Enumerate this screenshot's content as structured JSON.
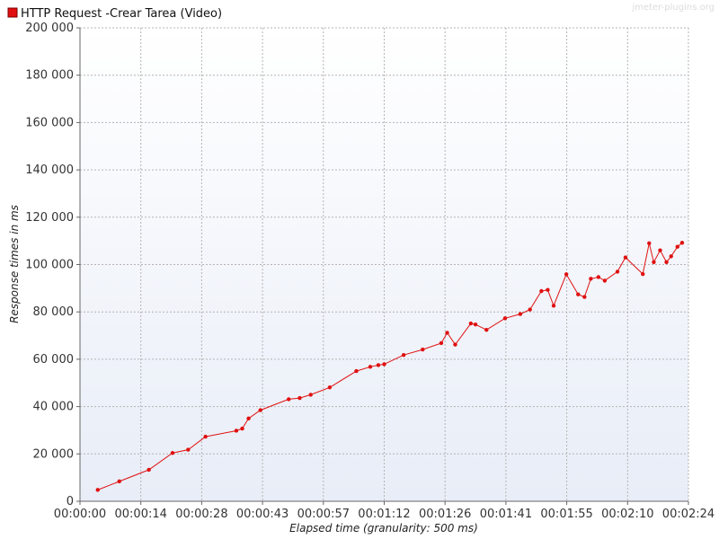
{
  "legend": {
    "label": "HTTP Request -Crear Tarea  (Video)",
    "swatch_color": "#e01010"
  },
  "watermark": "jmeter-plugins.org",
  "colors": {
    "series": "#e01010",
    "grid": "#b4b4b4",
    "plot_bg_top": "#ffffff",
    "plot_bg_bottom": "#e8edf7",
    "axis": "#666666"
  },
  "chart_data": {
    "type": "line",
    "title": "",
    "xlabel": "Elapsed time (granularity: 500 ms)",
    "ylabel": "Response times in ms",
    "xlim": [
      0,
      144
    ],
    "ylim": [
      0,
      200000
    ],
    "grid": true,
    "legend_position": "top-left",
    "x_ticks": [
      {
        "value": 0,
        "label": "00:00:00"
      },
      {
        "value": 14.4,
        "label": "00:00:14"
      },
      {
        "value": 28.8,
        "label": "00:00:28"
      },
      {
        "value": 43.2,
        "label": "00:00:43"
      },
      {
        "value": 57.6,
        "label": "00:00:57"
      },
      {
        "value": 72.0,
        "label": "00:01:12"
      },
      {
        "value": 86.4,
        "label": "00:01:26"
      },
      {
        "value": 100.8,
        "label": "00:01:41"
      },
      {
        "value": 115.2,
        "label": "00:01:55"
      },
      {
        "value": 129.6,
        "label": "00:02:10"
      },
      {
        "value": 144.0,
        "label": "00:02:24"
      }
    ],
    "y_ticks": [
      {
        "value": 0,
        "label": "0"
      },
      {
        "value": 20000,
        "label": "20 000"
      },
      {
        "value": 40000,
        "label": "40 000"
      },
      {
        "value": 60000,
        "label": "60 000"
      },
      {
        "value": 80000,
        "label": "80 000"
      },
      {
        "value": 100000,
        "label": "100 000"
      },
      {
        "value": 120000,
        "label": "120 000"
      },
      {
        "value": 140000,
        "label": "140 000"
      },
      {
        "value": 160000,
        "label": "160 000"
      },
      {
        "value": 180000,
        "label": "180 000"
      },
      {
        "value": 200000,
        "label": "200 000"
      }
    ],
    "series": [
      {
        "name": "HTTP Request -Crear Tarea  (Video)",
        "color": "#e01010",
        "points": [
          [
            4.2,
            4800
          ],
          [
            9.3,
            8400
          ],
          [
            16.3,
            13300
          ],
          [
            21.9,
            20400
          ],
          [
            25.6,
            21800
          ],
          [
            29.7,
            27300
          ],
          [
            37.0,
            29800
          ],
          [
            38.4,
            30700
          ],
          [
            39.9,
            35000
          ],
          [
            42.7,
            38500
          ],
          [
            49.4,
            43100
          ],
          [
            52.0,
            43600
          ],
          [
            54.6,
            45000
          ],
          [
            59.1,
            48100
          ],
          [
            65.4,
            55000
          ],
          [
            68.7,
            56800
          ],
          [
            70.6,
            57500
          ],
          [
            72.0,
            57900
          ],
          [
            76.6,
            61800
          ],
          [
            81.1,
            64100
          ],
          [
            85.5,
            66800
          ],
          [
            86.9,
            71200
          ],
          [
            88.8,
            66200
          ],
          [
            92.5,
            75100
          ],
          [
            93.6,
            74700
          ],
          [
            96.2,
            72400
          ],
          [
            100.6,
            77300
          ],
          [
            104.2,
            79100
          ],
          [
            106.5,
            81000
          ],
          [
            109.2,
            88800
          ],
          [
            110.7,
            89300
          ],
          [
            112.1,
            82600
          ],
          [
            115.1,
            95900
          ],
          [
            117.9,
            87400
          ],
          [
            119.4,
            86300
          ],
          [
            120.9,
            94000
          ],
          [
            122.7,
            94700
          ],
          [
            124.2,
            93200
          ],
          [
            127.2,
            97000
          ],
          [
            129.1,
            103000
          ],
          [
            133.2,
            96000
          ],
          [
            134.7,
            109000
          ],
          [
            135.8,
            101000
          ],
          [
            137.3,
            106000
          ],
          [
            138.8,
            101000
          ],
          [
            139.9,
            103500
          ],
          [
            141.4,
            107500
          ],
          [
            142.5,
            109200
          ]
        ]
      }
    ]
  }
}
